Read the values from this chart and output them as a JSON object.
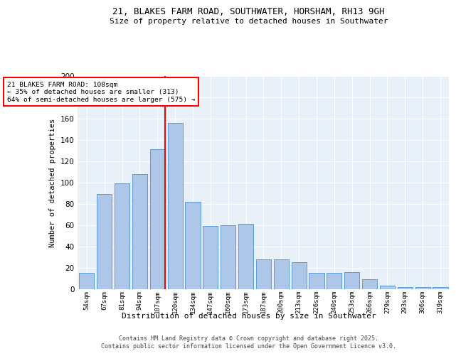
{
  "title1": "21, BLAKES FARM ROAD, SOUTHWATER, HORSHAM, RH13 9GH",
  "title2": "Size of property relative to detached houses in Southwater",
  "xlabel": "Distribution of detached houses by size in Southwater",
  "ylabel": "Number of detached properties",
  "bar_labels": [
    "54sqm",
    "67sqm",
    "81sqm",
    "94sqm",
    "107sqm",
    "120sqm",
    "134sqm",
    "147sqm",
    "160sqm",
    "173sqm",
    "187sqm",
    "200sqm",
    "213sqm",
    "226sqm",
    "240sqm",
    "253sqm",
    "266sqm",
    "279sqm",
    "293sqm",
    "306sqm",
    "319sqm"
  ],
  "bar_values": [
    15,
    89,
    99,
    108,
    131,
    156,
    82,
    59,
    60,
    61,
    28,
    28,
    25,
    15,
    15,
    16,
    9,
    3,
    2,
    2,
    2
  ],
  "bar_color": "#aec6e8",
  "bar_edge_color": "#5b9bd5",
  "vline_bar_index": 4,
  "vline_color": "red",
  "annotation_text": "21 BLAKES FARM ROAD: 108sqm\n← 35% of detached houses are smaller (313)\n64% of semi-detached houses are larger (575) →",
  "annotation_box_color": "white",
  "annotation_box_edge": "red",
  "ylim": [
    0,
    200
  ],
  "yticks": [
    0,
    20,
    40,
    60,
    80,
    100,
    120,
    140,
    160,
    180,
    200
  ],
  "bg_color": "#e8f0f8",
  "footer1": "Contains HM Land Registry data © Crown copyright and database right 2025.",
  "footer2": "Contains public sector information licensed under the Open Government Licence v3.0."
}
